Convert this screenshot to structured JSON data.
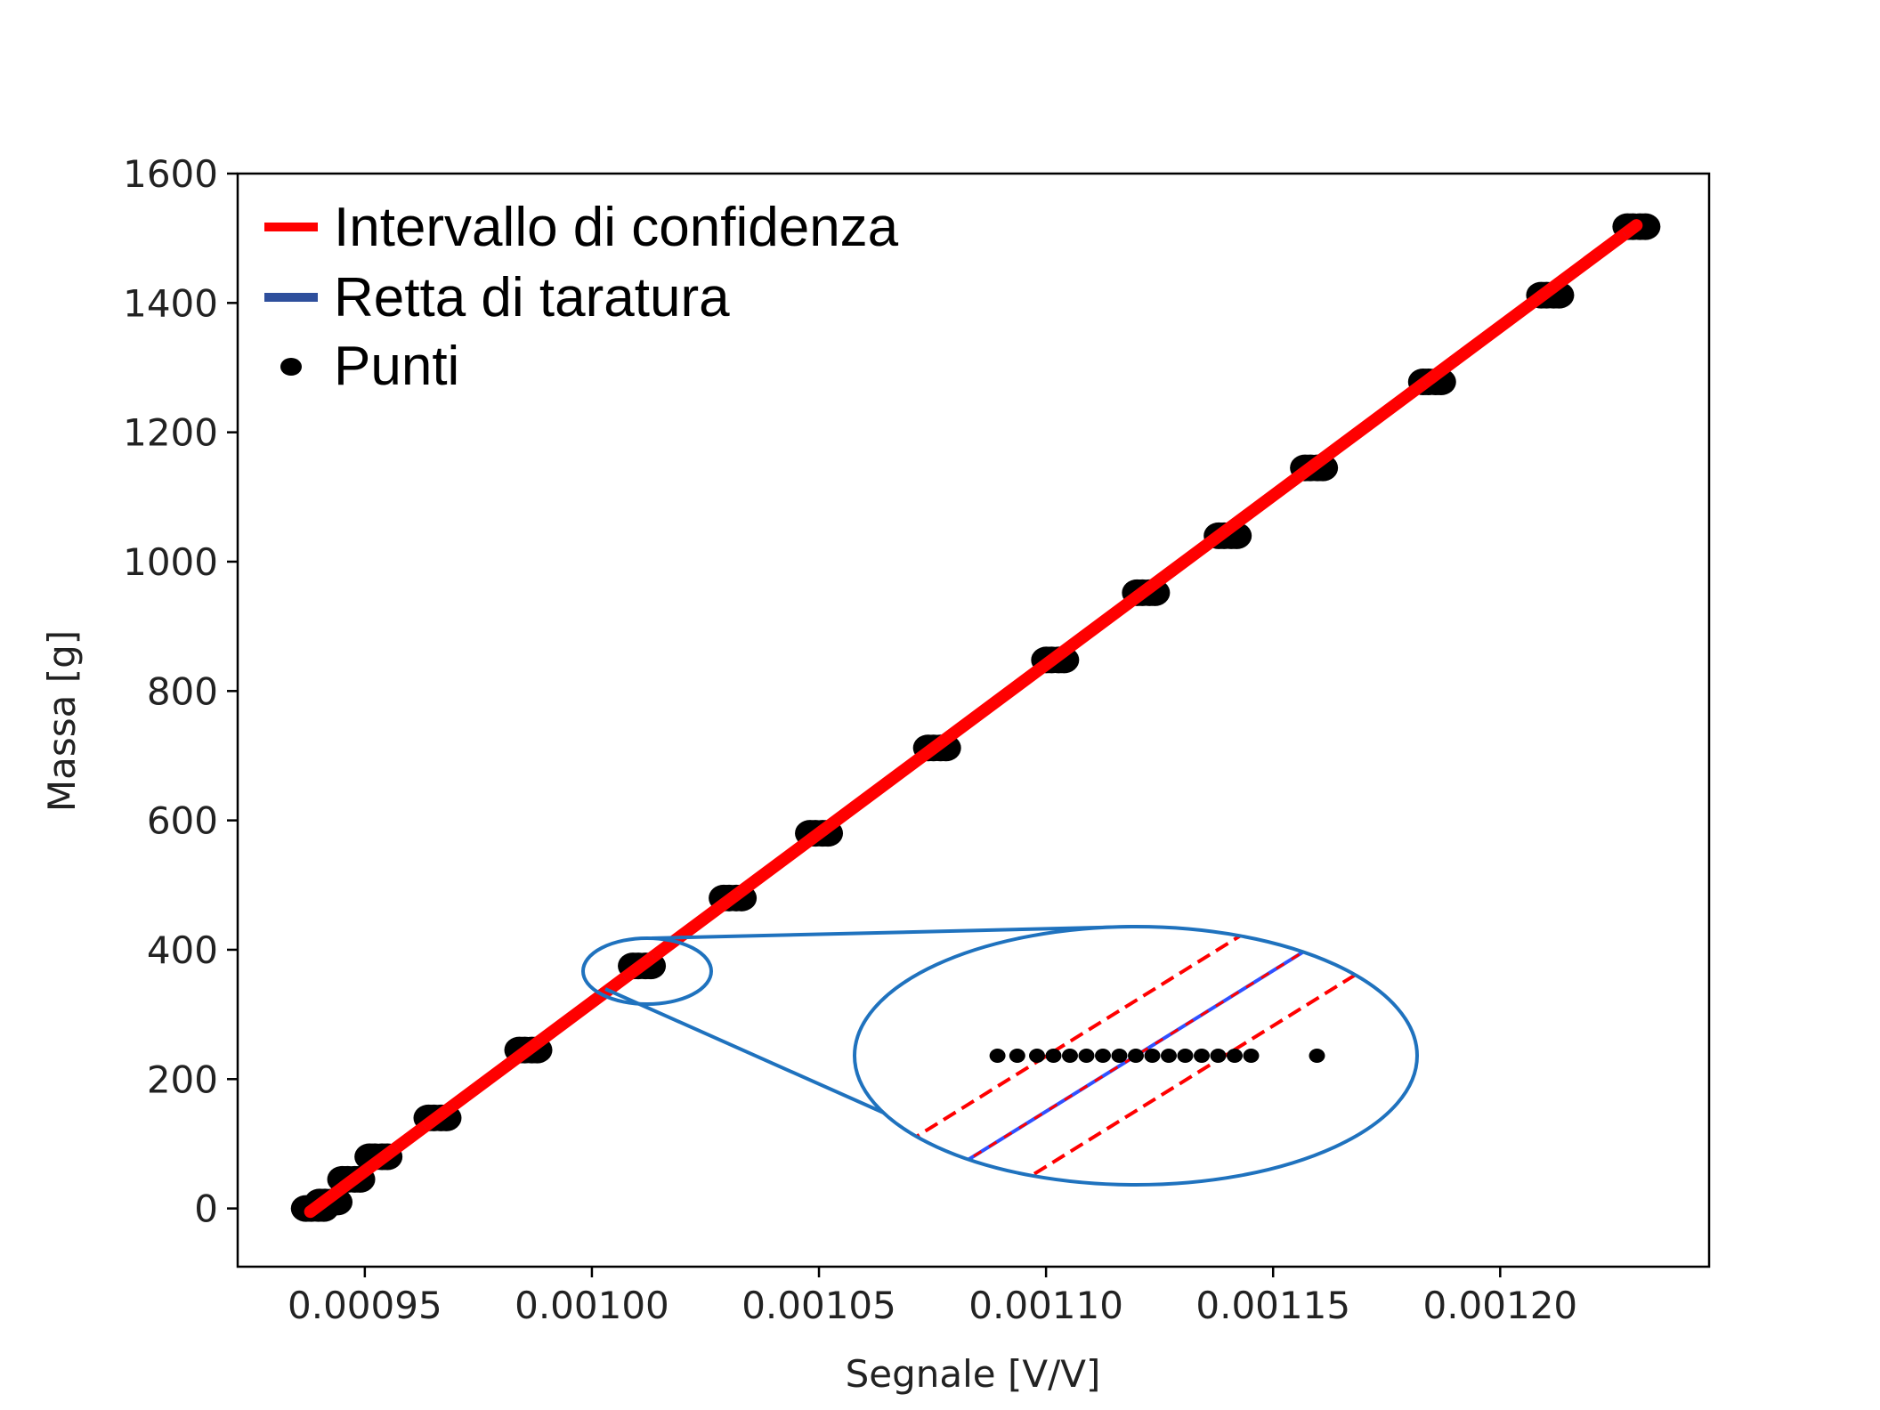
{
  "colors": {
    "confidence": "#ff0000",
    "fit": "#2e4f9c",
    "fit_inner": "#3050ff",
    "points": "#000000",
    "zoom": "#1f72be",
    "axes": "#000000"
  },
  "chart_data": {
    "type": "scatter",
    "title": "",
    "xlabel": "Segnale [V/V]",
    "ylabel": "Massa [g]",
    "xlim": [
      0.000922,
      0.001246
    ],
    "ylim": [
      -90,
      1600
    ],
    "xticks": [
      {
        "value": 0.00095,
        "label": "0.00095"
      },
      {
        "value": 0.001,
        "label": "0.00100"
      },
      {
        "value": 0.00105,
        "label": "0.00105"
      },
      {
        "value": 0.0011,
        "label": "0.00110"
      },
      {
        "value": 0.00115,
        "label": "0.00115"
      },
      {
        "value": 0.0012,
        "label": "0.00120"
      }
    ],
    "yticks": [
      {
        "value": 0,
        "label": "0"
      },
      {
        "value": 200,
        "label": "200"
      },
      {
        "value": 400,
        "label": "400"
      },
      {
        "value": 600,
        "label": "600"
      },
      {
        "value": 800,
        "label": "800"
      },
      {
        "value": 1000,
        "label": "1000"
      },
      {
        "value": 1200,
        "label": "1200"
      },
      {
        "value": 1400,
        "label": "1400"
      },
      {
        "value": 1600,
        "label": "1600"
      }
    ],
    "legend_position": "top-left",
    "legend": [
      {
        "label": "Intervallo di confidenza",
        "marker": "line",
        "color": "#ff0000"
      },
      {
        "label": "Retta di taratura",
        "marker": "line",
        "color": "#2e4f9c"
      },
      {
        "label": "Punti",
        "marker": "dot",
        "color": "#000000"
      }
    ],
    "series": [
      {
        "name": "Retta di taratura",
        "kind": "line",
        "x": [
          0.000938,
          0.00123
        ],
        "y": [
          -5,
          1520
        ]
      },
      {
        "name": "Intervallo di confidenza",
        "kind": "line",
        "x": [
          0.000938,
          0.00123
        ],
        "y": [
          -5,
          1520
        ]
      },
      {
        "name": "Punti",
        "kind": "scatter",
        "x": [
          0.000939,
          0.000942,
          0.000947,
          0.000953,
          0.000966,
          0.000986,
          0.001011,
          0.001031,
          0.00105,
          0.001076,
          0.001102,
          0.001122,
          0.00114,
          0.001159,
          0.001185,
          0.001211,
          0.00123
        ],
        "y": [
          0,
          10,
          45,
          80,
          140,
          245,
          375,
          480,
          580,
          712,
          848,
          952,
          1040,
          1145,
          1278,
          1412,
          1518
        ]
      }
    ],
    "inset": {
      "description_of_zoom": "magnified view of the region around Segnale 0.00101, Massa 375",
      "center": {
        "x": 0.001011,
        "y": 375
      },
      "points_offsets": [
        -0.42,
        -0.36,
        -0.3,
        -0.25,
        -0.2,
        -0.15,
        -0.1,
        -0.05,
        0.0,
        0.05,
        0.1,
        0.15,
        0.2,
        0.25,
        0.3,
        0.35,
        0.55
      ]
    }
  }
}
